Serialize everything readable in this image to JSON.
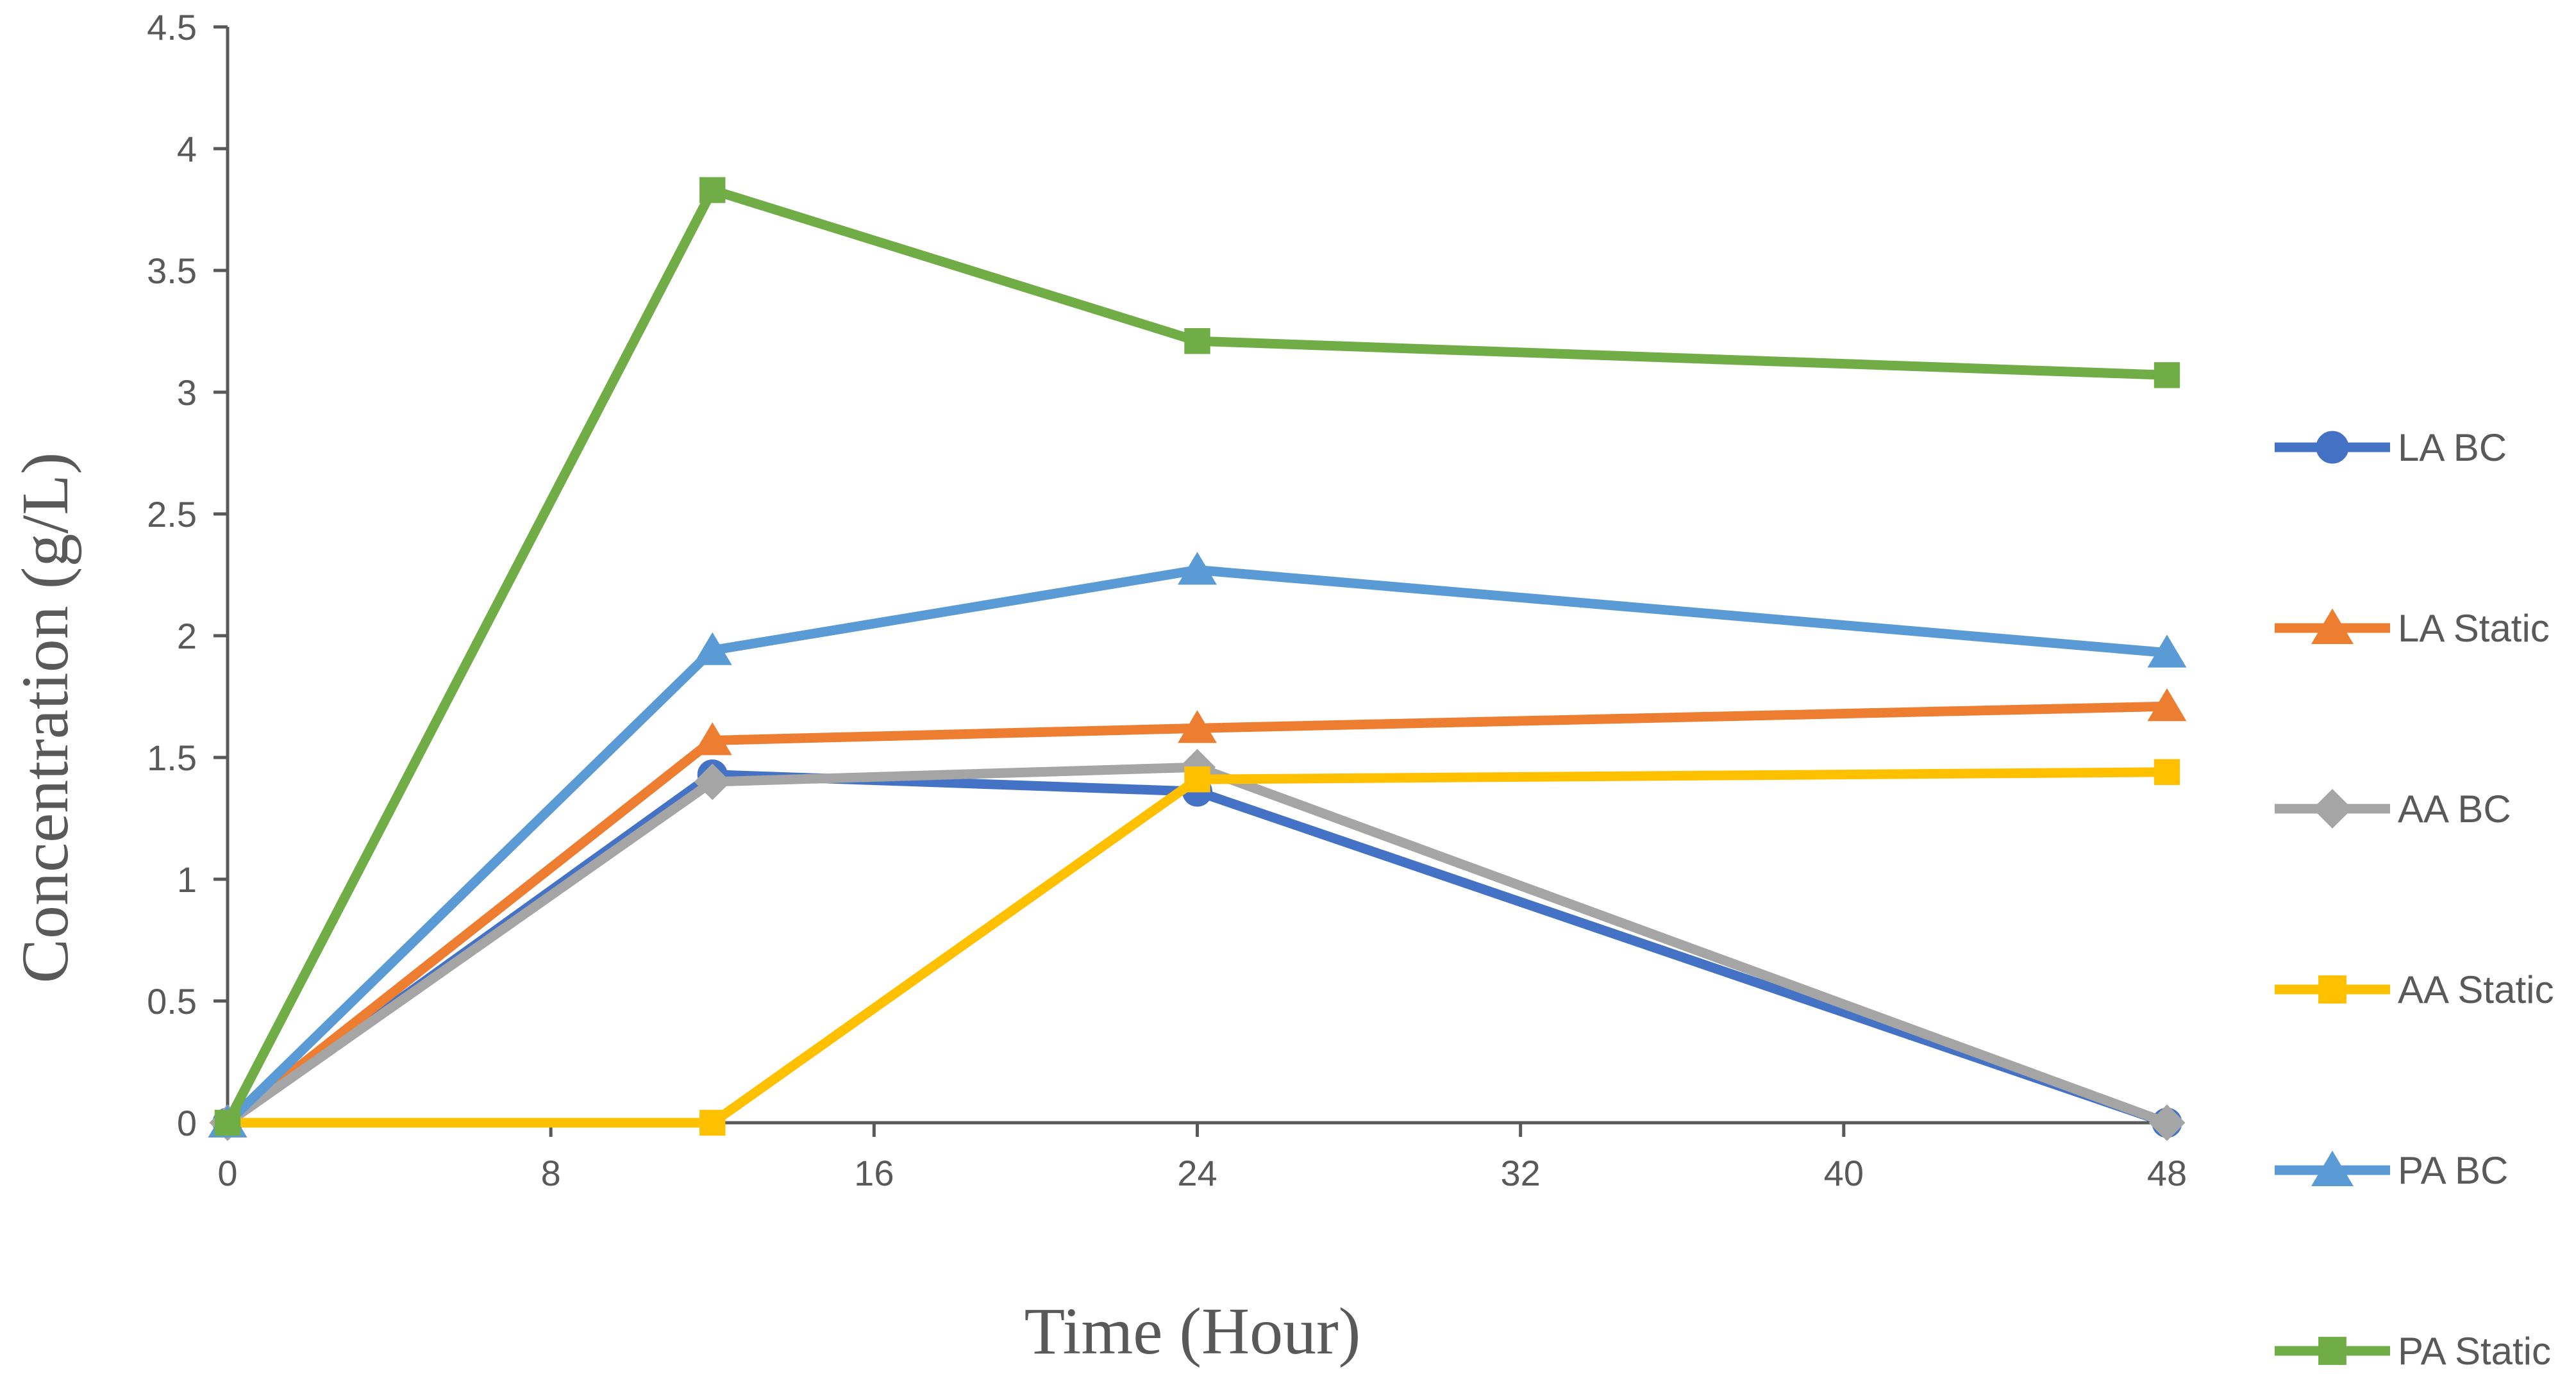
{
  "chart_data": {
    "type": "line",
    "title": "",
    "xlabel": "Time (Hour)",
    "ylabel": "Concentration (g/L)",
    "xlim": [
      0,
      48
    ],
    "ylim": [
      0,
      4.5
    ],
    "xticks": [
      "0",
      "8",
      "16",
      "24",
      "32",
      "40",
      "48"
    ],
    "yticks": [
      "0",
      "0.5",
      "1",
      "1.5",
      "2",
      "2.5",
      "3",
      "3.5",
      "4",
      "4.5"
    ],
    "grid": false,
    "legend_position": "right",
    "x": [
      0,
      12,
      24,
      48
    ],
    "series": [
      {
        "name": "LA BC",
        "color": "#4472C4",
        "marker": "circle",
        "values": [
          0,
          1.43,
          1.36,
          0.0
        ]
      },
      {
        "name": "LA Static",
        "color": "#ED7D31",
        "marker": "triangle",
        "values": [
          0,
          1.57,
          1.62,
          1.71
        ]
      },
      {
        "name": "AA BC",
        "color": "#A5A5A5",
        "marker": "diamond",
        "values": [
          0,
          1.4,
          1.46,
          0.0
        ]
      },
      {
        "name": "AA Static",
        "color": "#FFC000",
        "marker": "square",
        "values": [
          0,
          0,
          1.41,
          1.44
        ]
      },
      {
        "name": "PA BC",
        "color": "#5B9BD5",
        "marker": "triangle",
        "values": [
          0,
          1.94,
          2.27,
          1.93
        ]
      },
      {
        "name": "PA Static",
        "color": "#70AD47",
        "marker": "square",
        "values": [
          0,
          3.83,
          3.21,
          3.07
        ]
      }
    ]
  }
}
